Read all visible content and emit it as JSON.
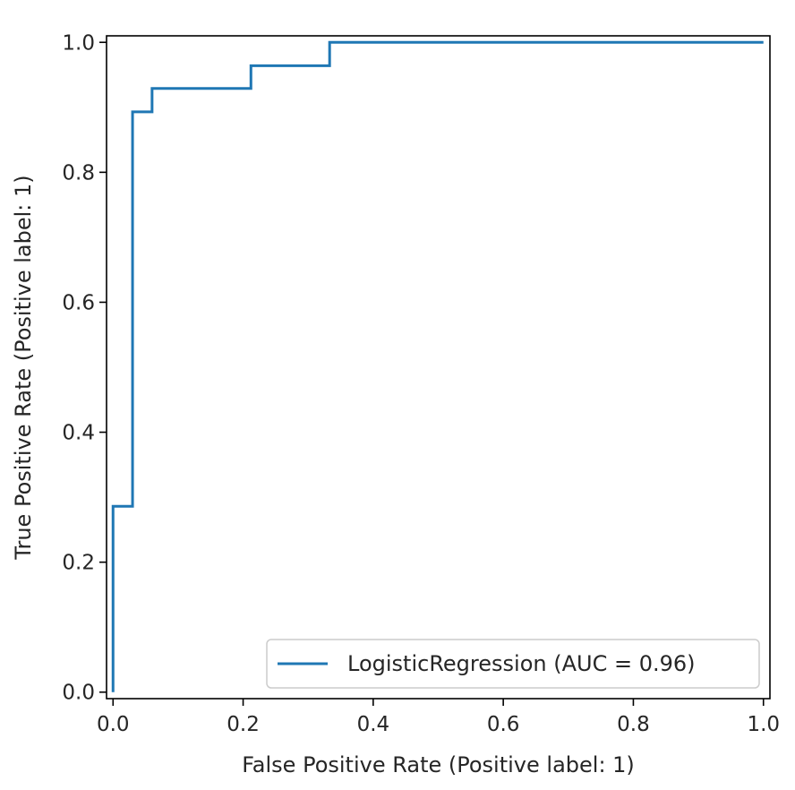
{
  "chart_data": {
    "type": "line",
    "title": "",
    "xlabel": "False Positive Rate (Positive label: 1)",
    "ylabel": "True Positive Rate (Positive label: 1)",
    "xlim": [
      -0.01,
      1.01
    ],
    "ylim": [
      -0.01,
      1.01
    ],
    "x_ticks": [
      0.0,
      0.2,
      0.4,
      0.6,
      0.8,
      1.0
    ],
    "x_tick_labels": [
      "0.0",
      "0.2",
      "0.4",
      "0.6",
      "0.8",
      "1.0"
    ],
    "y_ticks": [
      0.0,
      0.2,
      0.4,
      0.6,
      0.8,
      1.0
    ],
    "y_tick_labels": [
      "0.0",
      "0.2",
      "0.4",
      "0.6",
      "0.8",
      "1.0"
    ],
    "grid": false,
    "legend_position": "lower-right",
    "series": [
      {
        "name": "LogisticRegression (AUC = 0.96)",
        "color": "#1f77b4",
        "step": true,
        "x": [
          0.0,
          0.0,
          0.03,
          0.03,
          0.06,
          0.06,
          0.212,
          0.212,
          0.333,
          0.333,
          1.0
        ],
        "y": [
          0.0,
          0.286,
          0.286,
          0.893,
          0.893,
          0.929,
          0.929,
          0.964,
          0.964,
          1.0,
          1.0
        ]
      }
    ]
  }
}
